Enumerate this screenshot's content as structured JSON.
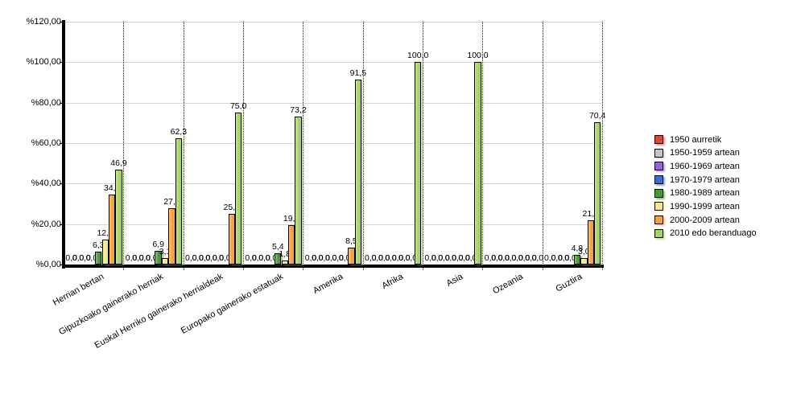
{
  "chart_data": {
    "type": "bar",
    "title": "",
    "xlabel": "",
    "ylabel": "",
    "ylim": [
      0,
      120
    ],
    "ytick_step": 20,
    "ytick_labels": [
      "%0,00",
      "%20,00",
      "%40,00",
      "%60,00",
      "%80,00",
      "%100,00",
      "%120,00"
    ],
    "value_label_format": "one-decimal-comma",
    "grid": "horizontal solid gray lines every 20%, vertical dotted black category separators",
    "legend_position": "right",
    "categories": [
      "Herrian bertan",
      "Gipuzkoako gainerako herriak",
      "Euskal Herriko gainerako herrialdeak",
      "Europako gainerako estatuak",
      "Amerika",
      "Afrika",
      "Asia",
      "Ozeania",
      "Guztira"
    ],
    "series": [
      {
        "name": "1950 aurretik",
        "color": "#e8462e",
        "values": [
          0,
          0,
          0,
          0,
          0,
          0,
          0,
          0,
          0
        ]
      },
      {
        "name": "1950-1959 artean",
        "color": "#c6c6c6",
        "values": [
          0,
          0,
          0,
          0,
          0,
          0,
          0,
          0,
          0
        ]
      },
      {
        "name": "1960-1969 artean",
        "color": "#9663cf",
        "values": [
          0,
          0,
          0,
          0,
          0,
          0,
          0,
          0,
          0
        ]
      },
      {
        "name": "1970-1979 artean",
        "color": "#3a6edc",
        "values": [
          0,
          0,
          0,
          0,
          0,
          0,
          0,
          0,
          0
        ]
      },
      {
        "name": "1980-1989 artean",
        "color": "#4a9a33",
        "values": [
          6.3,
          6.9,
          0,
          5.4,
          0,
          0,
          0,
          0,
          4.8
        ]
      },
      {
        "name": "1990-1999 artean",
        "color": "#f4e78c",
        "values": [
          12.5,
          3.1,
          0,
          1.8,
          0,
          0,
          0,
          0,
          3.0
        ]
      },
      {
        "name": "2000-2009 artean",
        "color": "#f7a139",
        "values": [
          34.4,
          27.7,
          25.0,
          19.6,
          8.5,
          0,
          0,
          0,
          21.8
        ]
      },
      {
        "name": "2010 edo beranduago",
        "color": "#a8d166",
        "values": [
          46.9,
          62.3,
          75.0,
          73.2,
          91.5,
          100.0,
          100.0,
          0,
          70.4
        ]
      }
    ],
    "colors": {
      "axis": "#000000",
      "gridline": "#d4d4d4",
      "separator": "#1a1a1a",
      "background": "#ffffff",
      "text": "#000000"
    }
  }
}
